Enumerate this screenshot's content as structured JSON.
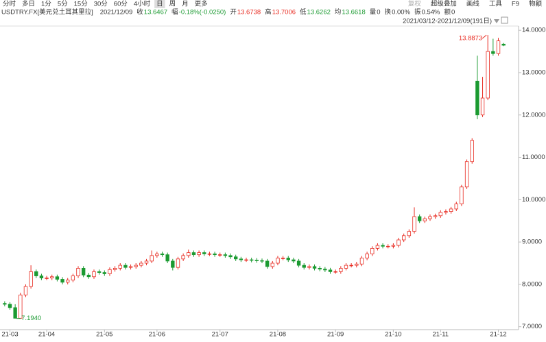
{
  "toolbar": {
    "periods": [
      "分时",
      "多日",
      "1分",
      "5分",
      "15分",
      "30分",
      "60分",
      "4小时",
      "日",
      "周",
      "月",
      "更多"
    ],
    "active": 8,
    "tools": [
      "复权",
      "超级叠加",
      "画线",
      "工具",
      "F9",
      "物额"
    ]
  },
  "header": {
    "symbol": "USDTRY.FX[美元兑土耳其里拉]",
    "date": "2021/12/09",
    "fields": [
      {
        "label": "收",
        "value": "13.6467",
        "color": "#1b9a31"
      },
      {
        "label": "幅",
        "value": "-0.18%(-0.0250)",
        "color": "#1b9a31"
      },
      {
        "label": "开",
        "value": "13.6738",
        "color": "#e8281e"
      },
      {
        "label": "高",
        "value": "13.7006",
        "color": "#e8281e"
      },
      {
        "label": "低",
        "value": "13.6262",
        "color": "#1b9a31"
      },
      {
        "label": "均",
        "value": "13.6618",
        "color": "#1b9a31"
      },
      {
        "label": "量",
        "value": "0",
        "color": "#333333"
      },
      {
        "label": "换",
        "value": "0.00%",
        "color": "#333333"
      },
      {
        "label": "振",
        "value": "0.54%",
        "color": "#333333"
      },
      {
        "label": "额",
        "value": "0",
        "color": "#333333"
      }
    ]
  },
  "range_label": "2021/03/12-2021/12/09(191日)",
  "chart_data": {
    "type": "candlestick",
    "up_color": "#e8281e",
    "down_color": "#1b9a31",
    "ylim": [
      6.93,
      14.1
    ],
    "yticks": [
      {
        "value": 7,
        "label": "7.0000"
      },
      {
        "value": 8,
        "label": "8.0000"
      },
      {
        "value": 9,
        "label": "9.0000"
      },
      {
        "value": 10,
        "label": "10.0000"
      },
      {
        "value": 11,
        "label": "11.0000"
      },
      {
        "value": 12,
        "label": "12.0000"
      },
      {
        "value": 13,
        "label": "13.0000"
      },
      {
        "value": 14,
        "label": "14.0000"
      }
    ],
    "categories": [
      null,
      "21-03",
      null,
      null,
      null,
      null,
      null,
      null,
      "21-04",
      null,
      null,
      null,
      null,
      null,
      null,
      null,
      null,
      null,
      null,
      "21-05",
      null,
      null,
      null,
      null,
      null,
      null,
      null,
      null,
      null,
      "21-06",
      null,
      null,
      null,
      null,
      null,
      null,
      null,
      null,
      null,
      null,
      null,
      "21-07",
      null,
      null,
      null,
      null,
      null,
      null,
      null,
      null,
      null,
      null,
      "21-08",
      null,
      null,
      null,
      null,
      null,
      null,
      null,
      null,
      null,
      null,
      "21-09",
      null,
      null,
      null,
      null,
      null,
      null,
      null,
      null,
      null,
      null,
      "21-10",
      null,
      null,
      null,
      null,
      null,
      null,
      null,
      null,
      "21-11",
      null,
      null,
      null,
      null,
      null,
      null,
      null,
      null,
      null,
      null,
      "21-12",
      null
    ],
    "open": [
      7.55,
      7.53,
      7.45,
      7.2,
      7.75,
      7.95,
      8.3,
      8.2,
      8.15,
      8.15,
      8.18,
      8.12,
      8.05,
      8.1,
      8.2,
      8.38,
      8.22,
      8.18,
      8.3,
      8.28,
      8.25,
      8.35,
      8.38,
      8.45,
      8.4,
      8.42,
      8.45,
      8.5,
      8.55,
      8.68,
      8.72,
      8.7,
      8.55,
      8.4,
      8.6,
      8.68,
      8.75,
      8.7,
      8.75,
      8.72,
      8.72,
      8.7,
      8.7,
      8.68,
      8.65,
      8.6,
      8.58,
      8.58,
      8.57,
      8.56,
      8.55,
      8.42,
      8.5,
      8.62,
      8.62,
      8.58,
      8.55,
      8.45,
      8.4,
      8.42,
      8.38,
      8.36,
      8.34,
      8.3,
      8.3,
      8.38,
      8.45,
      8.45,
      8.48,
      8.62,
      8.72,
      8.85,
      8.92,
      8.9,
      8.9,
      8.92,
      9.05,
      9.15,
      9.25,
      9.6,
      9.5,
      9.55,
      9.6,
      9.62,
      9.7,
      9.72,
      9.78,
      9.9,
      10.3,
      10.9,
      12.8,
      12.0,
      12.4,
      13.5,
      13.45,
      13.6738
    ],
    "high": [
      7.6,
      7.58,
      7.53,
      7.8,
      8.0,
      8.45,
      8.35,
      8.25,
      8.2,
      8.23,
      8.23,
      8.17,
      8.15,
      8.25,
      8.43,
      8.43,
      8.27,
      8.35,
      8.35,
      8.33,
      8.4,
      8.43,
      8.5,
      8.5,
      8.47,
      8.5,
      8.55,
      8.6,
      8.8,
      8.77,
      8.77,
      8.75,
      8.6,
      8.65,
      8.73,
      8.82,
      8.8,
      8.8,
      8.8,
      8.77,
      8.77,
      8.75,
      8.75,
      8.73,
      8.7,
      8.65,
      8.63,
      8.63,
      8.62,
      8.61,
      8.6,
      8.55,
      8.67,
      8.67,
      8.67,
      8.63,
      8.6,
      8.5,
      8.47,
      8.47,
      8.43,
      8.41,
      8.39,
      8.35,
      8.43,
      8.5,
      8.5,
      8.53,
      8.67,
      8.77,
      8.9,
      8.97,
      8.97,
      8.95,
      8.97,
      9.1,
      9.2,
      9.3,
      9.82,
      9.65,
      9.6,
      9.65,
      9.67,
      9.75,
      9.77,
      9.83,
      9.95,
      10.35,
      10.95,
      11.45,
      13.4,
      12.9,
      13.8873,
      13.8,
      13.82,
      13.7006
    ],
    "low": [
      7.48,
      7.4,
      7.194,
      7.25,
      7.7,
      7.9,
      8.15,
      8.1,
      8.1,
      8.1,
      8.07,
      8.0,
      8.0,
      8.05,
      8.15,
      8.17,
      8.13,
      8.13,
      8.23,
      8.2,
      8.2,
      8.3,
      8.33,
      8.35,
      8.35,
      8.37,
      8.4,
      8.45,
      8.5,
      8.63,
      8.65,
      8.5,
      8.33,
      8.35,
      8.55,
      8.63,
      8.65,
      8.65,
      8.67,
      8.67,
      8.65,
      8.65,
      8.63,
      8.6,
      8.55,
      8.53,
      8.53,
      8.52,
      8.51,
      8.5,
      8.37,
      8.37,
      8.45,
      8.57,
      8.53,
      8.5,
      8.4,
      8.35,
      8.35,
      8.33,
      8.31,
      8.29,
      8.25,
      8.25,
      8.25,
      8.33,
      8.4,
      8.4,
      8.43,
      8.57,
      8.67,
      8.8,
      8.85,
      8.85,
      8.85,
      8.87,
      9.0,
      9.1,
      9.2,
      9.45,
      9.45,
      9.5,
      9.55,
      9.57,
      9.65,
      9.67,
      9.73,
      9.85,
      10.25,
      10.85,
      11.9,
      11.95,
      12.35,
      13.4,
      13.4,
      13.6262
    ],
    "close": [
      7.53,
      7.45,
      7.2,
      7.75,
      7.95,
      8.3,
      8.2,
      8.15,
      8.15,
      8.18,
      8.12,
      8.05,
      8.1,
      8.2,
      8.38,
      8.22,
      8.18,
      8.3,
      8.28,
      8.25,
      8.35,
      8.38,
      8.45,
      8.4,
      8.42,
      8.45,
      8.5,
      8.55,
      8.68,
      8.72,
      8.7,
      8.55,
      8.4,
      8.6,
      8.68,
      8.75,
      8.7,
      8.75,
      8.72,
      8.72,
      8.7,
      8.7,
      8.68,
      8.65,
      8.6,
      8.58,
      8.58,
      8.57,
      8.56,
      8.55,
      8.42,
      8.5,
      8.62,
      8.62,
      8.58,
      8.55,
      8.45,
      8.4,
      8.42,
      8.38,
      8.36,
      8.34,
      8.3,
      8.3,
      8.38,
      8.45,
      8.45,
      8.48,
      8.62,
      8.72,
      8.85,
      8.92,
      8.9,
      8.9,
      8.92,
      9.05,
      9.15,
      9.25,
      9.6,
      9.5,
      9.55,
      9.6,
      9.62,
      9.7,
      9.72,
      9.78,
      9.9,
      10.3,
      10.9,
      11.4,
      12.0,
      12.4,
      13.5,
      13.45,
      13.75,
      13.6467
    ],
    "max_label": "13.8873",
    "min_label": "7.1940"
  }
}
